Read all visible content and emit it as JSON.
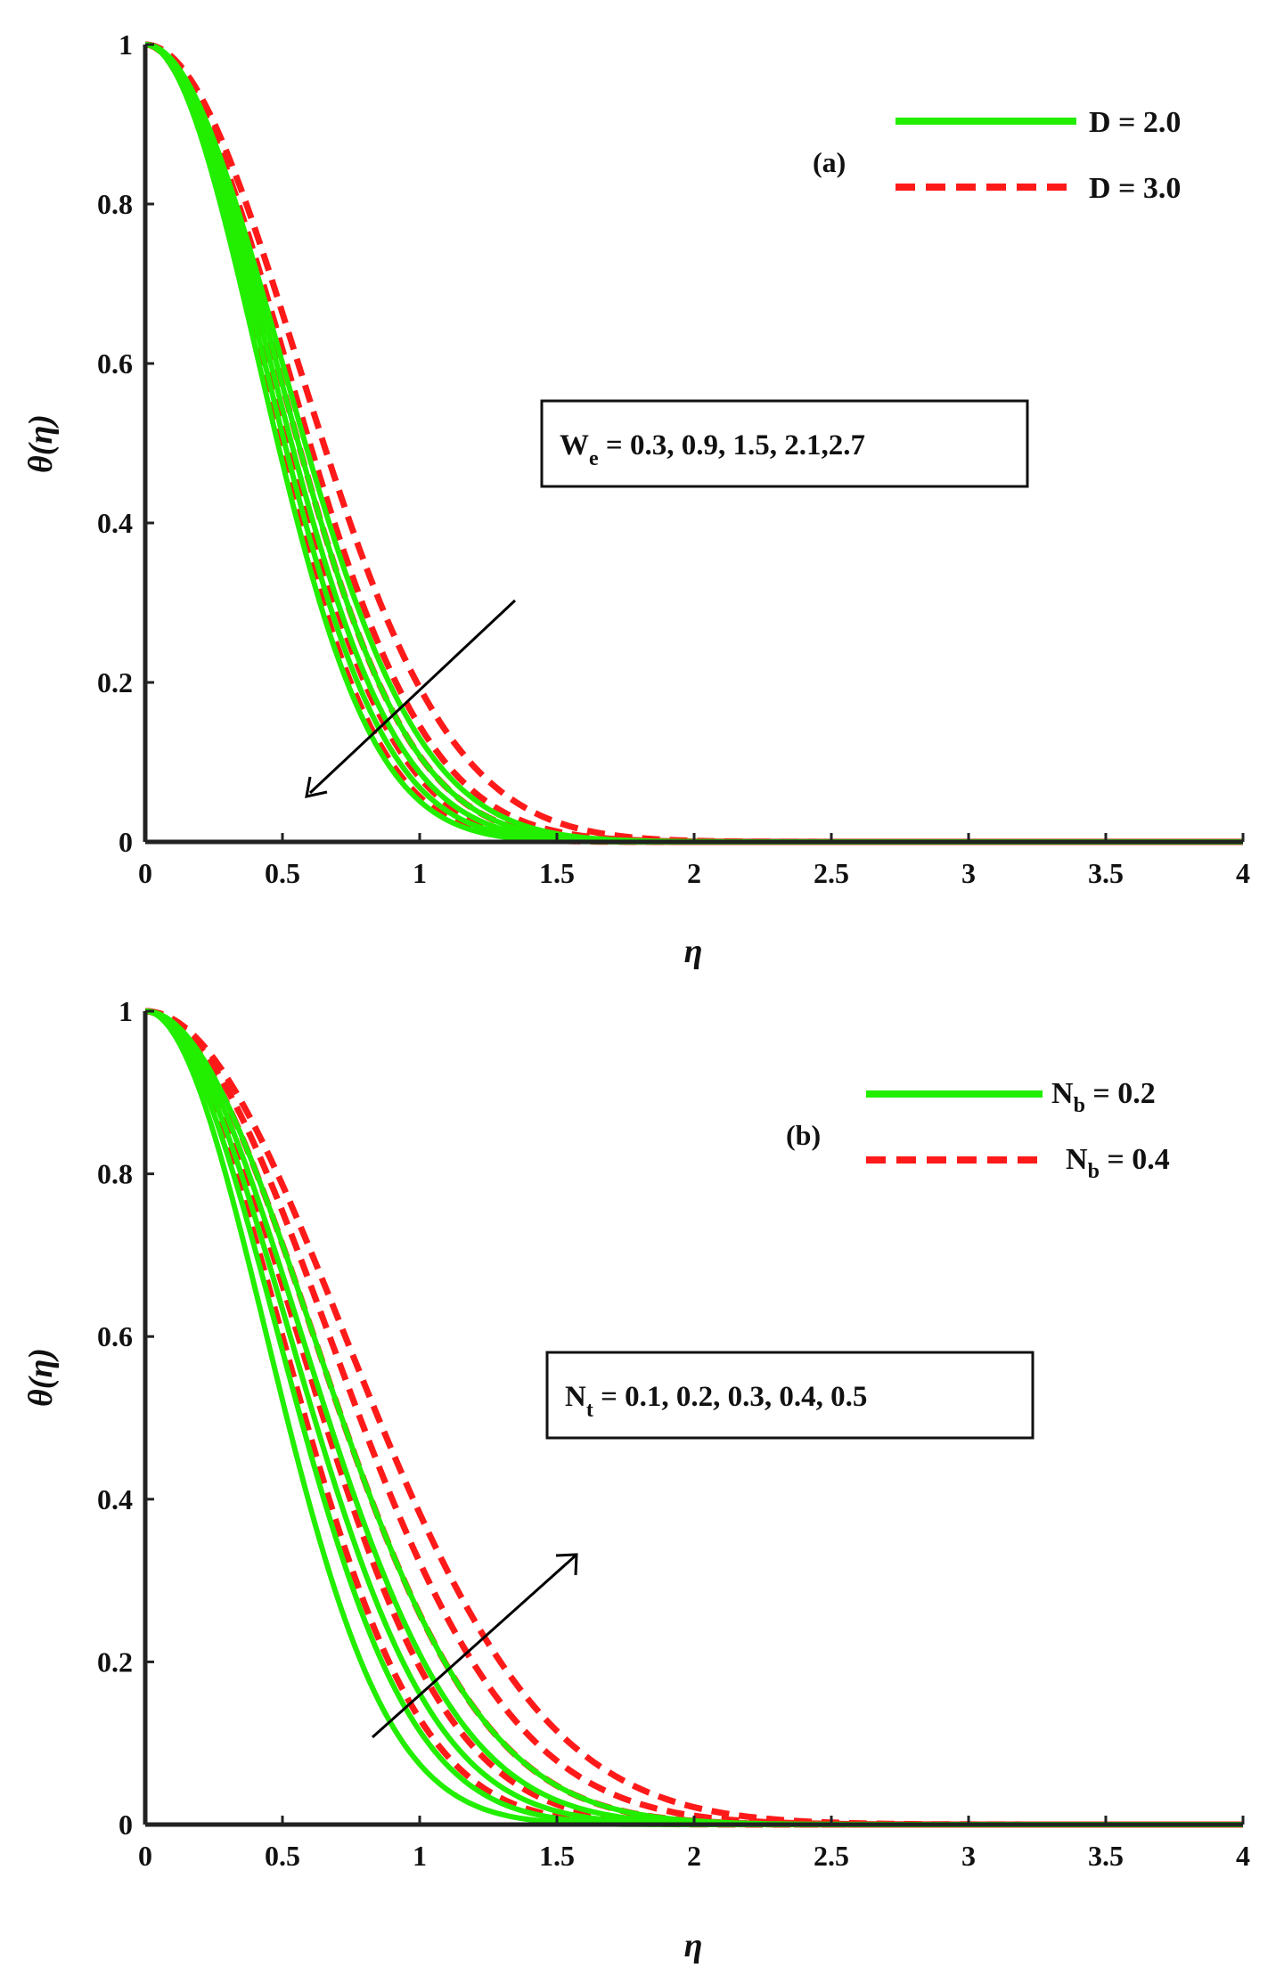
{
  "chart_data": [
    {
      "type": "line",
      "panel_label": "(a)",
      "xlabel": "η",
      "ylabel": "θ(η)",
      "xlim": [
        0,
        4
      ],
      "ylim": [
        0,
        1
      ],
      "xticks": [
        "0",
        "0.5",
        "1",
        "1.5",
        "2",
        "2.5",
        "3",
        "3.5",
        "4"
      ],
      "yticks": [
        "0",
        "0.2",
        "0.4",
        "0.6",
        "0.8",
        "1"
      ],
      "legend": [
        {
          "label": "D = 2.0",
          "style": "solid",
          "color": "#22ee00"
        },
        {
          "label": "D = 3.0",
          "style": "dashed",
          "color": "#ff1a1a"
        }
      ],
      "annotation": {
        "symbol": "W",
        "sub": "e",
        "values": " = 0.3, 0.9, 1.5, 2.1,2.7"
      },
      "arrow_direction": "decreasing",
      "series": [
        {
          "name": "D = 2.0",
          "style": "solid",
          "decay_scale": [
            0.58,
            0.61,
            0.64,
            0.67,
            0.7
          ]
        },
        {
          "name": "D = 3.0",
          "style": "dashed",
          "decay_scale": [
            0.59,
            0.63,
            0.67,
            0.72,
            0.78
          ]
        }
      ]
    },
    {
      "type": "line",
      "panel_label": "(b)",
      "xlabel": "η",
      "ylabel": "θ(η)",
      "xlim": [
        0,
        4
      ],
      "ylim": [
        0,
        1
      ],
      "xticks": [
        "0",
        "0.5",
        "1",
        "1.5",
        "2",
        "2.5",
        "3",
        "3.5",
        "4"
      ],
      "yticks": [
        "0",
        "0.2",
        "0.4",
        "0.6",
        "0.8",
        "1"
      ],
      "legend": [
        {
          "label": "N",
          "sub": "b",
          "rest": " = 0.2",
          "style": "solid",
          "color": "#22ee00"
        },
        {
          "label": "N",
          "sub": "b",
          "rest": " = 0.4",
          "style": "dashed",
          "color": "#ff1a1a"
        }
      ],
      "annotation": {
        "symbol": "N",
        "sub": "t",
        "values": " = 0.1, 0.2, 0.3, 0.4, 0.5"
      },
      "arrow_direction": "increasing",
      "series": [
        {
          "name": "Nb = 0.2",
          "style": "solid",
          "decay_scale": [
            0.62,
            0.68,
            0.74,
            0.8,
            0.86
          ]
        },
        {
          "name": "Nb = 0.4",
          "style": "dashed",
          "decay_scale": [
            0.7,
            0.78,
            0.86,
            0.94,
            1.02
          ]
        }
      ]
    }
  ]
}
